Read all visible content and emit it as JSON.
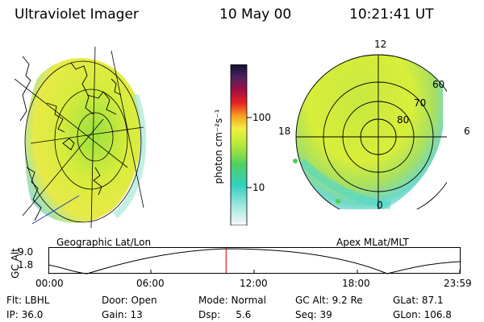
{
  "header": {
    "instrument": "Ultraviolet Imager",
    "date": "10 May 00",
    "time": "10:21:41 UT"
  },
  "colorbar": {
    "unit": "photon cm⁻²s⁻¹",
    "tick_high": "100",
    "tick_low": "10"
  },
  "geographic_panel": {
    "label": "Geographic Lat/Lon"
  },
  "apex_panel": {
    "label": "Apex  MLat/MLT",
    "mlt_top": "12",
    "mlt_left": "18",
    "mlt_right": "6",
    "mlt_bottom": "0",
    "lat_60": "60",
    "lat_70": "70",
    "lat_80": "80"
  },
  "altitude_plot": {
    "ylabel": "GC Alt",
    "y_high": "9.0",
    "y_low": "1.8",
    "x_ticks": [
      "00:00",
      "06:00",
      "12:00",
      "18:00",
      "23:59"
    ],
    "current_hour": 10.36
  },
  "info": {
    "flt": "Flt: LBHL",
    "door": "Door: Open",
    "mode": "Mode: Normal",
    "gc_alt": "GC Alt: 9.2 Re",
    "glat": "GLat:  87.1",
    "ip": "IP: 36.0",
    "gain": "Gain: 13",
    "dsp": "Dsp:     5.6",
    "seq": "Seq: 39",
    "glon": "GLon: 106.8"
  },
  "colors": {
    "aurora_low": "#7ee0d0",
    "aurora_mid": "#b8e838",
    "aurora_high": "#f0f040",
    "marker": "#e02020"
  }
}
